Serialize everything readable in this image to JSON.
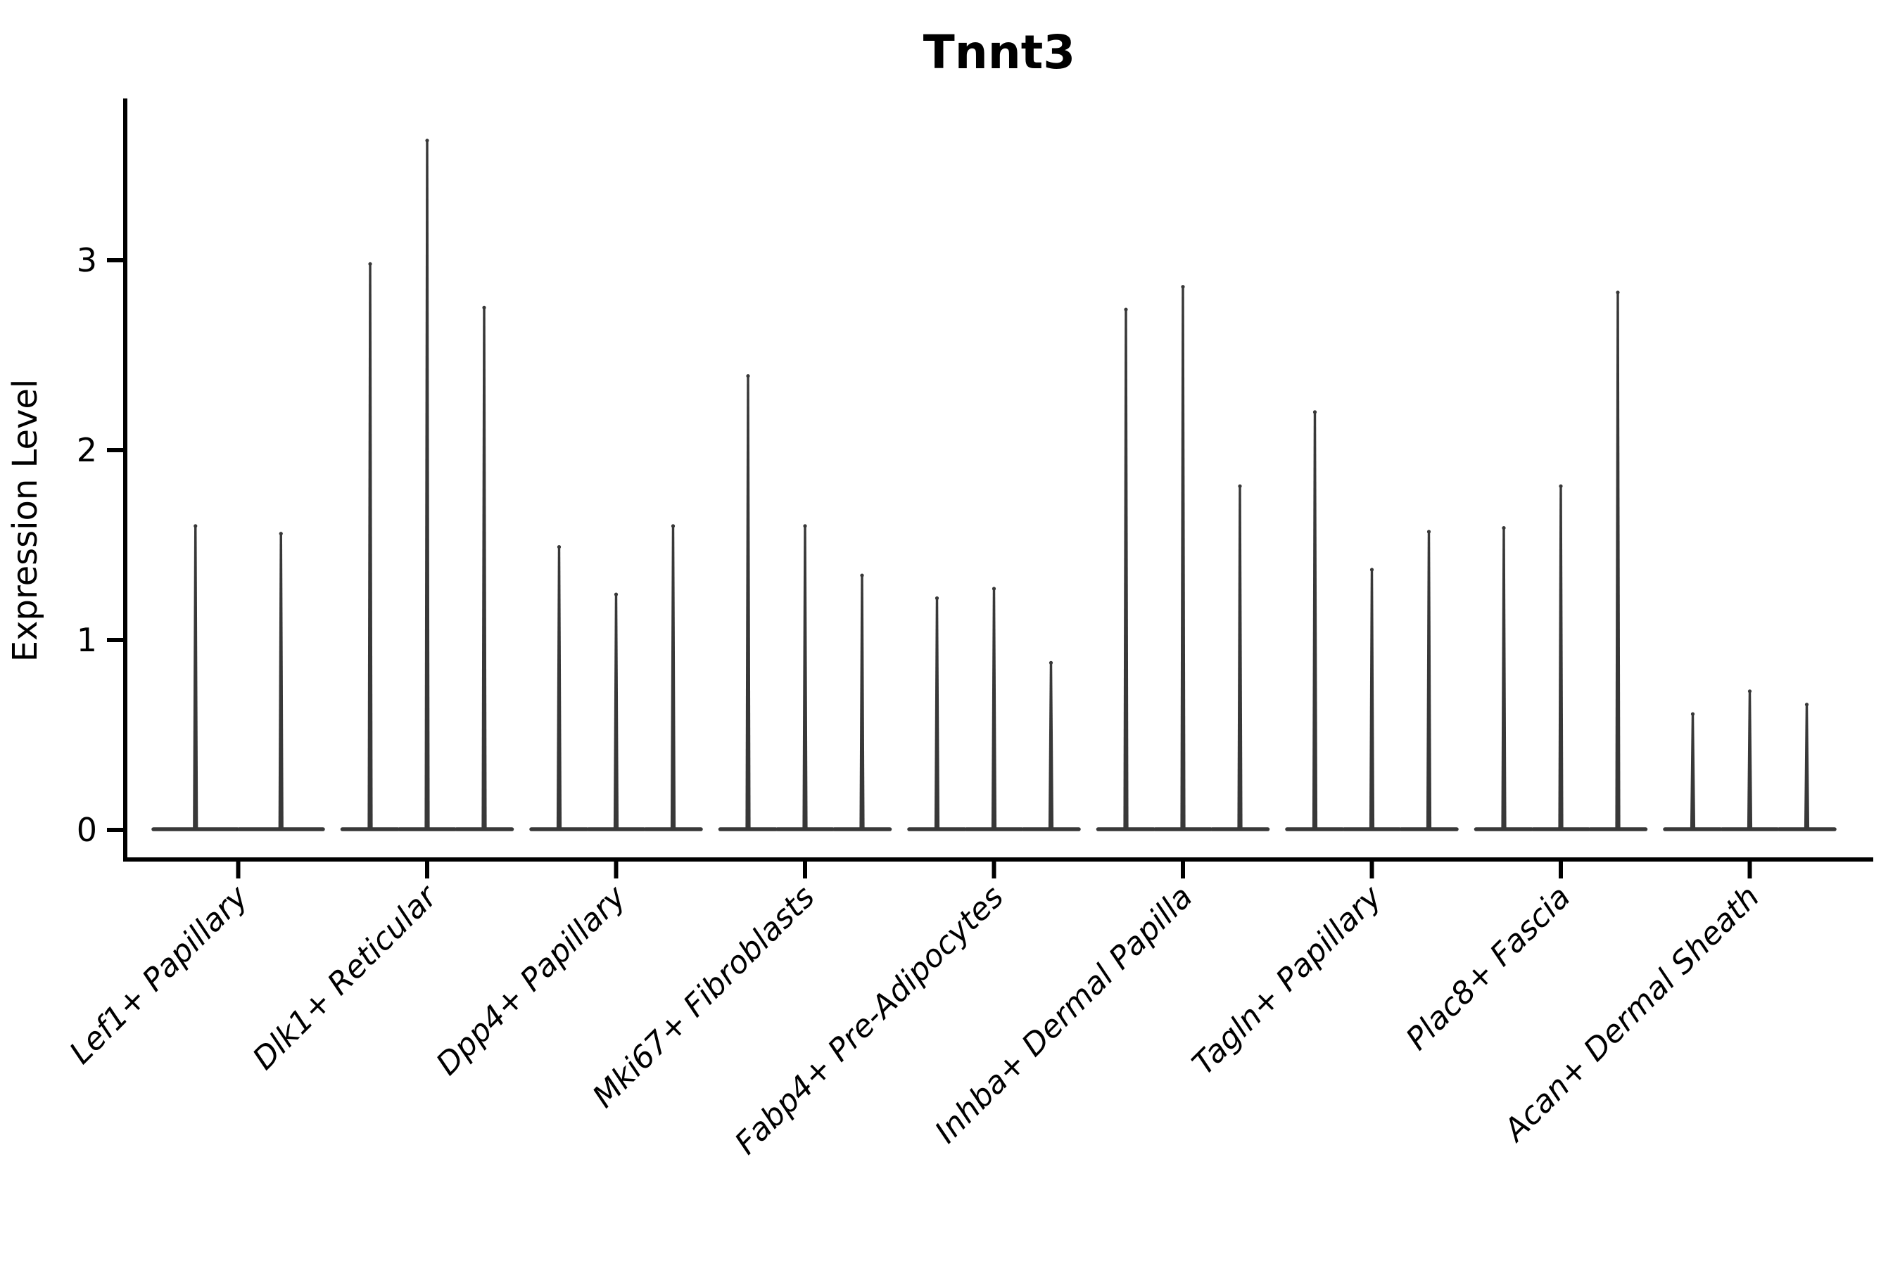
{
  "chart_data": {
    "type": "violin",
    "title": "Tnnt3",
    "ylabel": "Expression Level",
    "xlabel": "",
    "yticks": [
      0,
      1,
      2,
      3
    ],
    "ylim": [
      -0.16,
      3.85
    ],
    "grid": false,
    "legend": "none",
    "x_tick_rotation_deg": 45,
    "x_tick_style": "italic",
    "ink_color": "#383838",
    "axis_color": "#000000",
    "text_color": "#000000",
    "background_color": "#ffffff",
    "shape_note": "Each violin is a wide flat base at expression 0 with a thin vertical spike rising to the max expression value",
    "groups": [
      {
        "label": "Lef1+ Papillary",
        "violin_maxes": [
          1.61,
          1.57
        ]
      },
      {
        "label": "Dlk1+ Reticular",
        "violin_maxes": [
          2.99,
          3.64,
          2.76
        ]
      },
      {
        "label": "Dpp4+ Papillary",
        "violin_maxes": [
          1.5,
          1.25,
          1.61
        ]
      },
      {
        "label": "Mki67+ Fibroblasts",
        "violin_maxes": [
          2.4,
          1.61,
          1.35
        ]
      },
      {
        "label": "Fabp4+ Pre-Adipocytes",
        "violin_maxes": [
          1.23,
          1.28,
          0.89
        ]
      },
      {
        "label": "Inhba+ Dermal Papilla",
        "violin_maxes": [
          2.75,
          2.87,
          1.82
        ]
      },
      {
        "label": "Tagln+ Papillary",
        "violin_maxes": [
          2.21,
          1.38,
          1.58
        ]
      },
      {
        "label": "Plac8+ Fascia",
        "violin_maxes": [
          1.6,
          1.82,
          2.84
        ]
      },
      {
        "label": "Acan+ Dermal Sheath",
        "violin_maxes": [
          0.62,
          0.74,
          0.67
        ]
      }
    ]
  }
}
